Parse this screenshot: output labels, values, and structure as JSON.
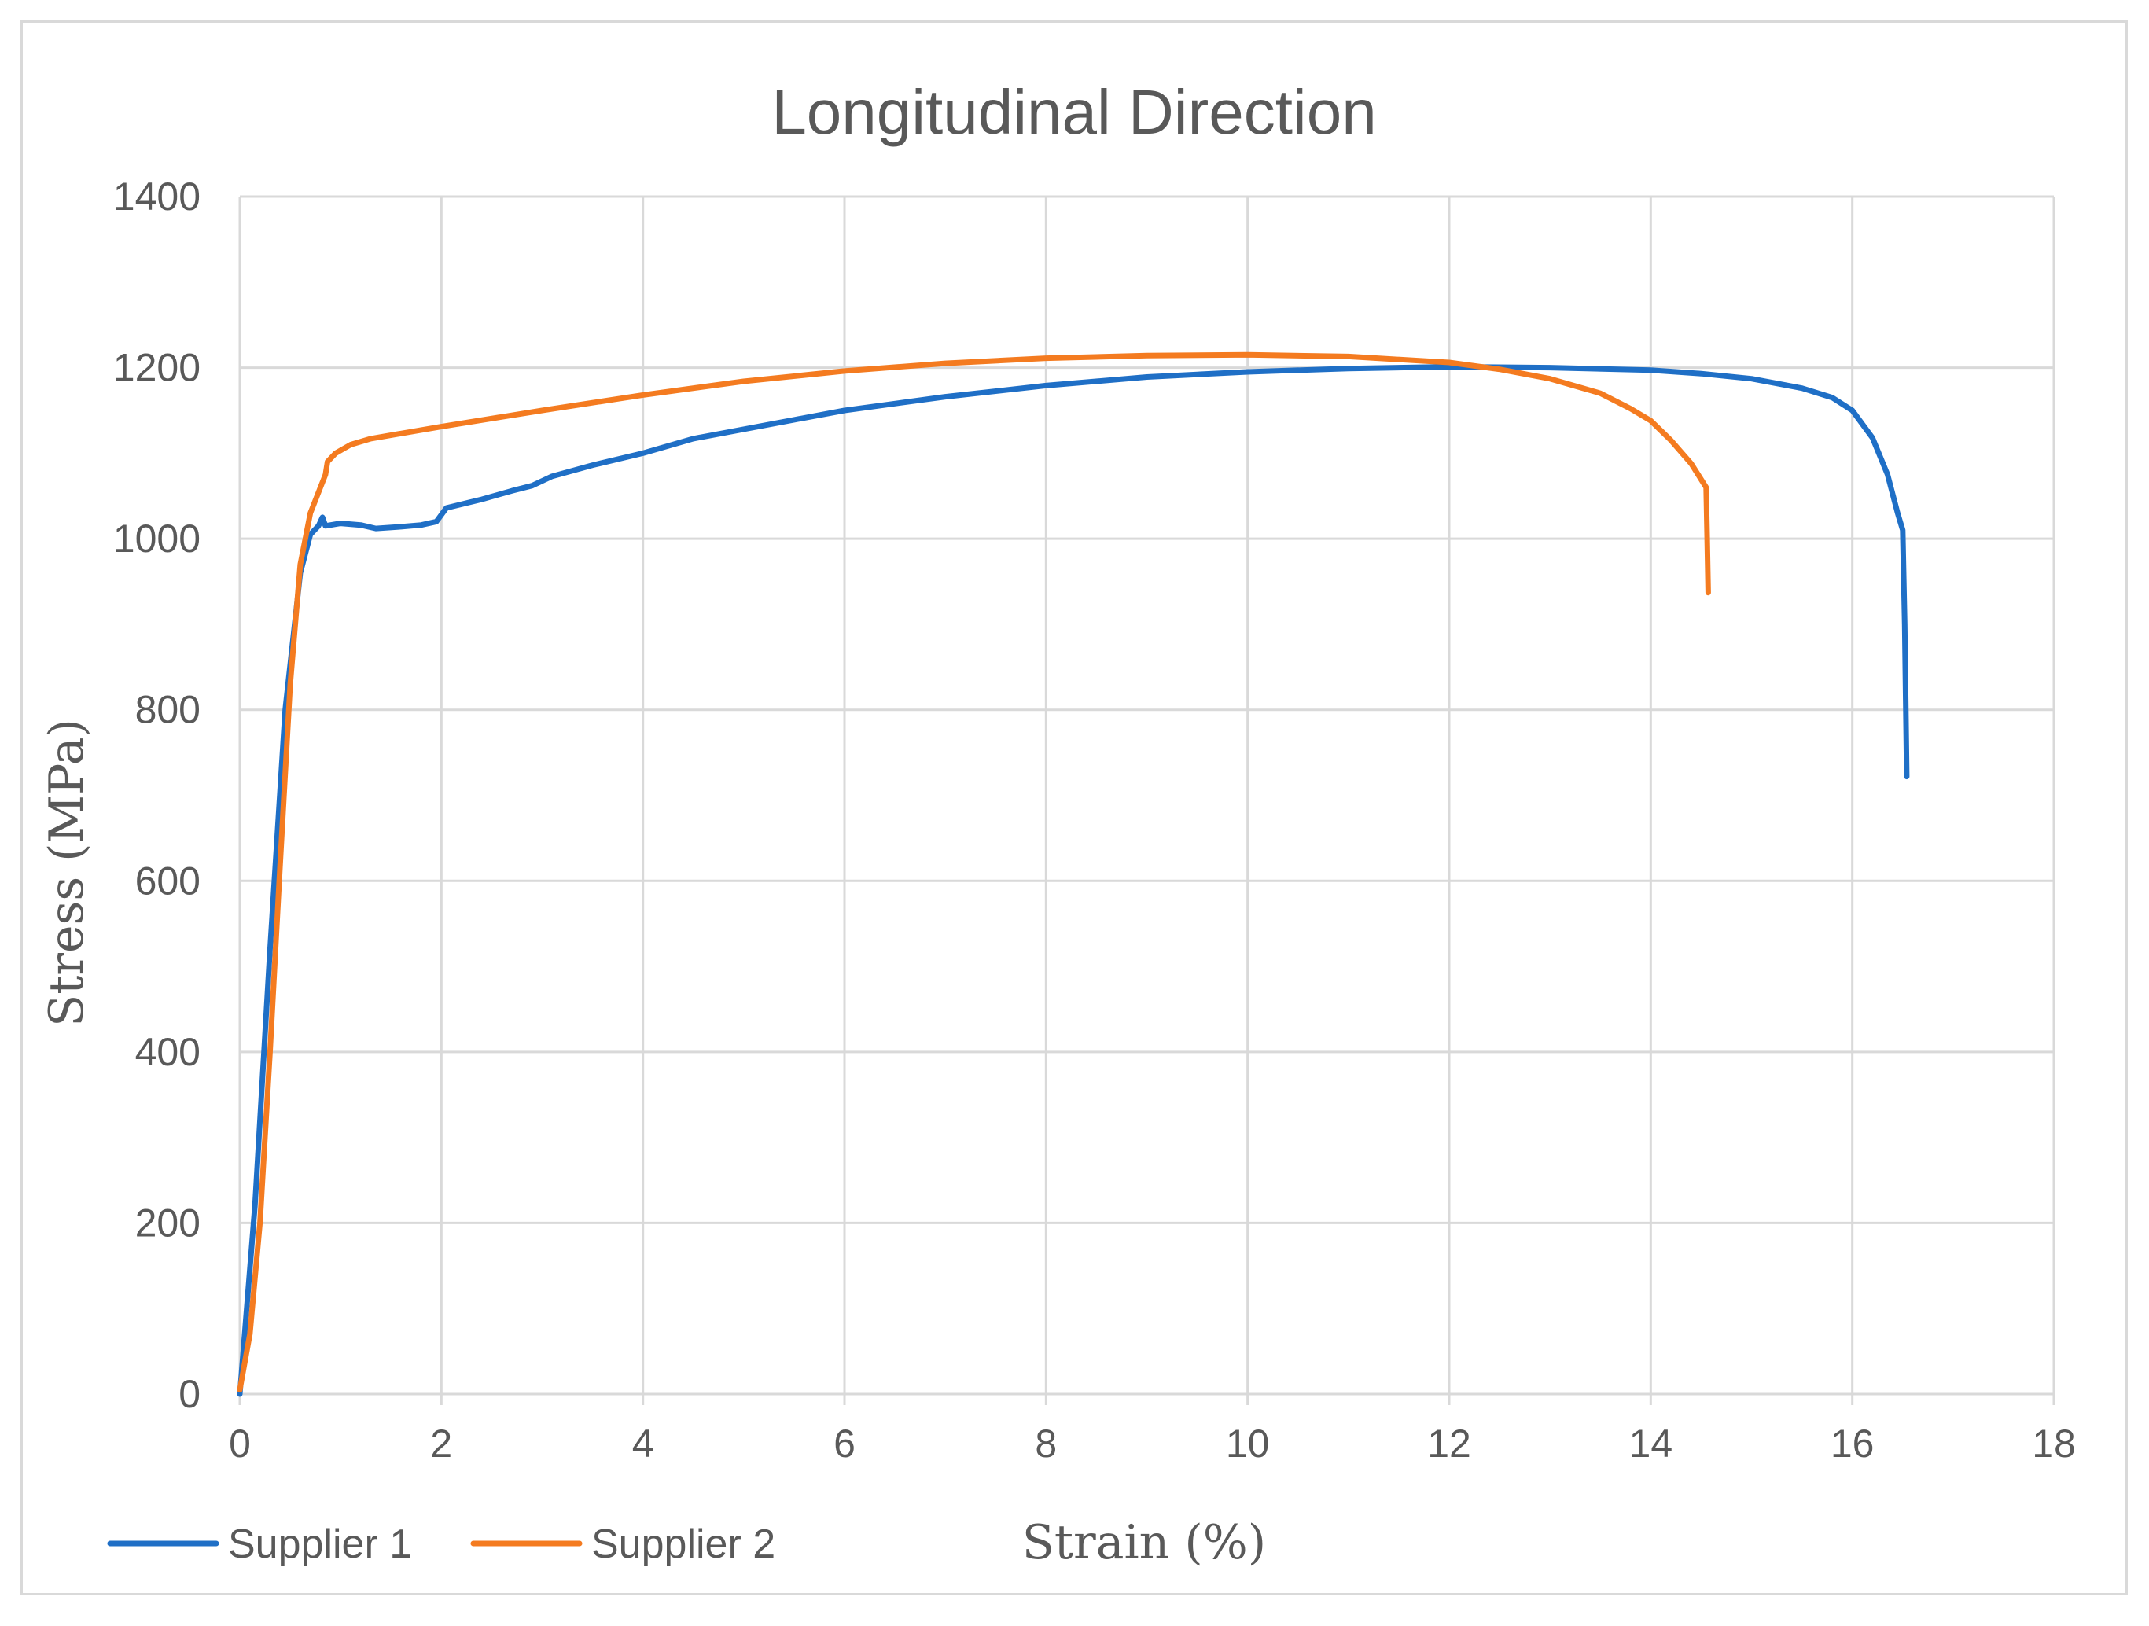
{
  "chart_data": {
    "type": "line",
    "title": "Longitudinal Direction",
    "xlabel": "Strain (%)",
    "ylabel": "Stress (MPa)",
    "xlim": [
      0,
      18
    ],
    "ylim": [
      0,
      1400
    ],
    "x_ticks": [
      0,
      2,
      4,
      6,
      8,
      10,
      12,
      14,
      16,
      18
    ],
    "y_ticks": [
      0,
      200,
      400,
      600,
      800,
      1000,
      1200,
      1400
    ],
    "grid": true,
    "legend_position": "bottom-left",
    "series": [
      {
        "name": "Supplier 1",
        "color": "#1f6fc6",
        "points": [
          [
            0,
            0
          ],
          [
            0.15,
            220
          ],
          [
            0.3,
            520
          ],
          [
            0.45,
            800
          ],
          [
            0.6,
            960
          ],
          [
            0.7,
            1005
          ],
          [
            0.78,
            1015
          ],
          [
            0.82,
            1025
          ],
          [
            0.85,
            1015
          ],
          [
            1.0,
            1018
          ],
          [
            1.2,
            1016
          ],
          [
            1.35,
            1012
          ],
          [
            1.6,
            1014
          ],
          [
            1.8,
            1016
          ],
          [
            1.95,
            1020
          ],
          [
            2.05,
            1036
          ],
          [
            2.4,
            1046
          ],
          [
            2.7,
            1056
          ],
          [
            2.9,
            1062
          ],
          [
            3.1,
            1073
          ],
          [
            3.5,
            1086
          ],
          [
            4.0,
            1100
          ],
          [
            4.5,
            1117
          ],
          [
            5.0,
            1128
          ],
          [
            5.5,
            1139
          ],
          [
            6.0,
            1150
          ],
          [
            7.0,
            1166
          ],
          [
            8.0,
            1179
          ],
          [
            9.0,
            1189
          ],
          [
            10.0,
            1195
          ],
          [
            11.0,
            1199
          ],
          [
            12.0,
            1201
          ],
          [
            13.0,
            1200
          ],
          [
            14.0,
            1197
          ],
          [
            14.5,
            1193
          ],
          [
            15.0,
            1187
          ],
          [
            15.5,
            1176
          ],
          [
            15.8,
            1165
          ],
          [
            16.0,
            1150
          ],
          [
            16.2,
            1118
          ],
          [
            16.35,
            1075
          ],
          [
            16.45,
            1030
          ],
          [
            16.5,
            1010
          ],
          [
            16.52,
            900
          ],
          [
            16.54,
            722
          ]
        ]
      },
      {
        "name": "Supplier 2",
        "color": "#f47b20",
        "points": [
          [
            0,
            5
          ],
          [
            0.1,
            70
          ],
          [
            0.2,
            200
          ],
          [
            0.3,
            400
          ],
          [
            0.4,
            620
          ],
          [
            0.5,
            830
          ],
          [
            0.6,
            970
          ],
          [
            0.7,
            1030
          ],
          [
            0.8,
            1060
          ],
          [
            0.85,
            1075
          ],
          [
            0.87,
            1090
          ],
          [
            0.95,
            1100
          ],
          [
            1.1,
            1110
          ],
          [
            1.3,
            1117
          ],
          [
            1.6,
            1123
          ],
          [
            2.0,
            1131
          ],
          [
            3.0,
            1150
          ],
          [
            4.0,
            1168
          ],
          [
            5.0,
            1184
          ],
          [
            6.0,
            1196
          ],
          [
            7.0,
            1205
          ],
          [
            8.0,
            1211
          ],
          [
            9.0,
            1214
          ],
          [
            10.0,
            1215
          ],
          [
            11.0,
            1213
          ],
          [
            12.0,
            1206
          ],
          [
            12.5,
            1198
          ],
          [
            13.0,
            1187
          ],
          [
            13.5,
            1170
          ],
          [
            13.8,
            1152
          ],
          [
            14.0,
            1138
          ],
          [
            14.2,
            1115
          ],
          [
            14.4,
            1088
          ],
          [
            14.55,
            1060
          ],
          [
            14.56,
            1000
          ],
          [
            14.57,
            937
          ]
        ]
      }
    ]
  }
}
